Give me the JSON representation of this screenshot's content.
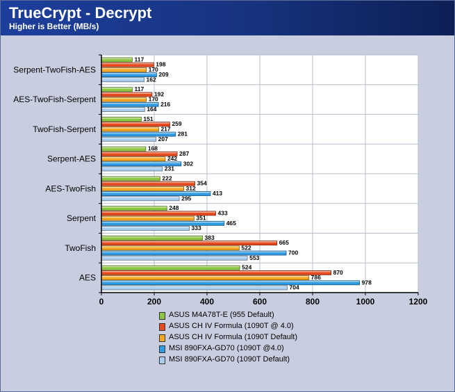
{
  "title": "TrueCrypt - Decrypt",
  "subtitle": "Higher is Better (MB/s)",
  "chart_data": {
    "type": "bar",
    "orientation": "horizontal",
    "categories": [
      "Serpent-TwoFish-AES",
      "AES-TwoFish-Serpent",
      "TwoFish-Serpent",
      "Serpent-AES",
      "AES-TwoFish",
      "Serpent",
      "TwoFish",
      "AES"
    ],
    "series": [
      {
        "name": "ASUS M4A78T-E (955 Default)",
        "color": "#8dc63f",
        "values": [
          117,
          117,
          151,
          168,
          222,
          248,
          383,
          524
        ]
      },
      {
        "name": "ASUS CH IV Formula (1090T @ 4.0)",
        "color": "#e8491d",
        "values": [
          198,
          192,
          259,
          287,
          354,
          433,
          665,
          870
        ]
      },
      {
        "name": "ASUS CH IV Formula (1090T Default)",
        "color": "#f7a823",
        "values": [
          170,
          170,
          217,
          242,
          312,
          351,
          522,
          786
        ]
      },
      {
        "name": "MSI 890FXA-GD70 (1090T @4.0)",
        "color": "#2f9be3",
        "values": [
          209,
          216,
          281,
          302,
          413,
          465,
          700,
          978
        ]
      },
      {
        "name": "MSI 890FXA-GD70 (1090T Default)",
        "color": "#a9cdee",
        "values": [
          162,
          164,
          207,
          231,
          295,
          333,
          553,
          704
        ]
      }
    ],
    "xlim": [
      0,
      1200
    ],
    "xticks": [
      "0",
      "200",
      "400",
      "600",
      "800",
      "1000",
      "1200"
    ],
    "grid": true,
    "legend_position": "bottom"
  }
}
